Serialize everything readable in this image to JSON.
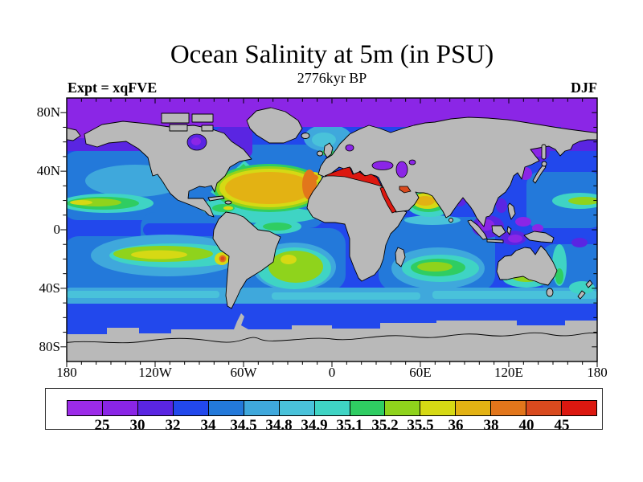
{
  "title": "Ocean Salinity at 5m (in PSU)",
  "subtitle": "2776kyr BP",
  "experiment_label": "Expt = xqFVE",
  "season_label": "DJF",
  "axes": {
    "x_ticks": [
      "180",
      "120W",
      "60W",
      "0",
      "60E",
      "120E",
      "180"
    ],
    "y_ticks": [
      "80N",
      "40N",
      "0",
      "40S",
      "80S"
    ]
  },
  "chart_data": {
    "type": "heatmap",
    "title": "Ocean Salinity at 5m (in PSU)",
    "subtitle": "2776kyr BP",
    "experiment": "Expt = xqFVE",
    "season": "DJF",
    "units": "PSU",
    "projection": "equirectangular world map",
    "x_axis": {
      "tick_labels": [
        "180",
        "120W",
        "60W",
        "0",
        "60E",
        "120E",
        "180"
      ],
      "range_deg": [
        -180,
        180
      ],
      "minor_tick_deg": 10
    },
    "y_axis": {
      "tick_labels": [
        "80N",
        "40N",
        "0",
        "40S",
        "80S"
      ],
      "range_deg": [
        -90,
        90
      ],
      "minor_tick_deg": 10
    },
    "colorbar": {
      "boundaries": [
        "25",
        "30",
        "32",
        "34",
        "34.5",
        "34.8",
        "34.9",
        "35.1",
        "35.2",
        "35.5",
        "36",
        "38",
        "40",
        "45"
      ],
      "colors": [
        "#9c2be8",
        "#8a25e6",
        "#5a25e2",
        "#2248ec",
        "#2379da",
        "#3fa8dc",
        "#49c2da",
        "#3fd4c4",
        "#2fcd62",
        "#8fd31c",
        "#d6d914",
        "#e3b213",
        "#e2761b",
        "#d94a1e",
        "#dc1810"
      ]
    },
    "land_color": "#b9b9b9",
    "coastline_color": "#000000",
    "background_color": "#ffffff",
    "regional_values_psu": {
      "arctic_ocean_band": "25-30",
      "bering_and_subpolar_seas": "30-32",
      "hudson_bay": "25-32",
      "north_pacific_background": "34-34.5",
      "hawaii_subtropical_streak": "35.2-35.5",
      "kuroshio_extension_streak": "35.2-35.5",
      "north_atlantic_subtropical_gyre": "36-38",
      "nw_africa_coastal_fringe": "38-40",
      "mediterranean_sea": "> 45",
      "black_sea": "25-30",
      "caspian_sea": "25-30",
      "red_sea": "> 45",
      "persian_gulf": "40-45",
      "arabian_sea": "36-38",
      "bay_of_bengal": "30-32",
      "indonesian_seas": "25-32",
      "sea_of_okhotsk_and_japan_sea": "25-32",
      "south_pacific_gyre_streak": "35.5-36",
      "peru_coast_spot": "38-40",
      "south_atlantic_gyre_patch": "35.2-35.5",
      "south_indian_gyre_patch": "35.2-35.5",
      "south_australia_patch": "35.2-35.5",
      "mid_latitude_40s_band": "34.5-35.1",
      "southern_ocean": "32-34",
      "antarctica_and_land": "masked gray"
    }
  }
}
